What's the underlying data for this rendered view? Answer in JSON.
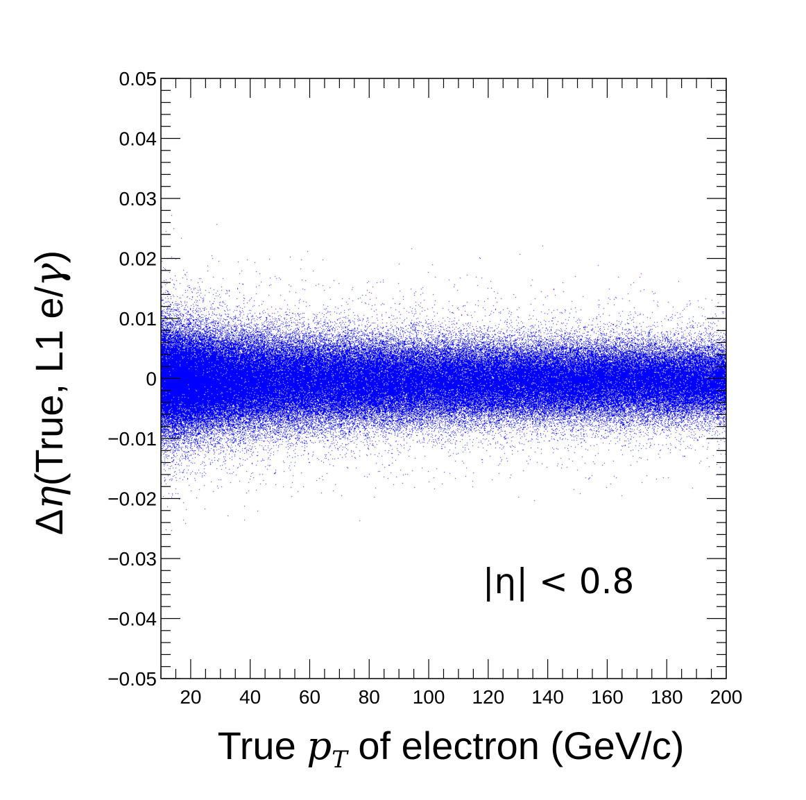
{
  "chart_data": {
    "type": "scatter",
    "title": "",
    "xlabel_parts": {
      "prefix": "True ",
      "symbol": "p",
      "subscript": "T",
      "suffix": " of electron (GeV/c)"
    },
    "ylabel_parts": {
      "prefix": "Δ",
      "symbol": "η",
      "suffix": "(True, L1 e/",
      "symbol2": "γ",
      "end": ")"
    },
    "annotation": "|η| < 0.8",
    "xlim": [
      10,
      200
    ],
    "ylim": [
      -0.05,
      0.05
    ],
    "x_ticks": [
      {
        "value": 20,
        "label": "20"
      },
      {
        "value": 40,
        "label": "40"
      },
      {
        "value": 60,
        "label": "60"
      },
      {
        "value": 80,
        "label": "80"
      },
      {
        "value": 100,
        "label": "100"
      },
      {
        "value": 120,
        "label": "120"
      },
      {
        "value": 140,
        "label": "140"
      },
      {
        "value": 160,
        "label": "160"
      },
      {
        "value": 180,
        "label": "180"
      },
      {
        "value": 200,
        "label": "200"
      }
    ],
    "y_ticks": [
      {
        "value": 0.05,
        "label": "0.05"
      },
      {
        "value": 0.04,
        "label": "0.04"
      },
      {
        "value": 0.03,
        "label": "0.03"
      },
      {
        "value": 0.02,
        "label": "0.02"
      },
      {
        "value": 0.01,
        "label": "0.01"
      },
      {
        "value": 0,
        "label": "0"
      },
      {
        "value": -0.01,
        "label": "−0.01"
      },
      {
        "value": -0.02,
        "label": "−0.02"
      },
      {
        "value": -0.03,
        "label": "−0.03"
      },
      {
        "value": -0.04,
        "label": "−0.04"
      },
      {
        "value": -0.05,
        "label": "−0.05"
      }
    ],
    "series": [
      {
        "color": "#0000ff",
        "distribution": {
          "x_min": 10,
          "x_max": 200,
          "y_center": -0.0005,
          "sigma_at_pt": [
            {
              "pt": 10,
              "sigma": 0.0042
            },
            {
              "pt": 30,
              "sigma": 0.0038
            },
            {
              "pt": 60,
              "sigma": 0.0035
            },
            {
              "pt": 100,
              "sigma": 0.0032
            },
            {
              "pt": 150,
              "sigma": 0.003
            },
            {
              "pt": 200,
              "sigma": 0.0029
            }
          ],
          "density_at_pt": [
            {
              "pt": 10,
              "weight": 2.6
            },
            {
              "pt": 20,
              "weight": 2.2
            },
            {
              "pt": 30,
              "weight": 1.6
            },
            {
              "pt": 50,
              "weight": 1.2
            },
            {
              "pt": 100,
              "weight": 1.0
            },
            {
              "pt": 200,
              "weight": 0.9
            }
          ]
        }
      }
    ],
    "grid": false
  }
}
